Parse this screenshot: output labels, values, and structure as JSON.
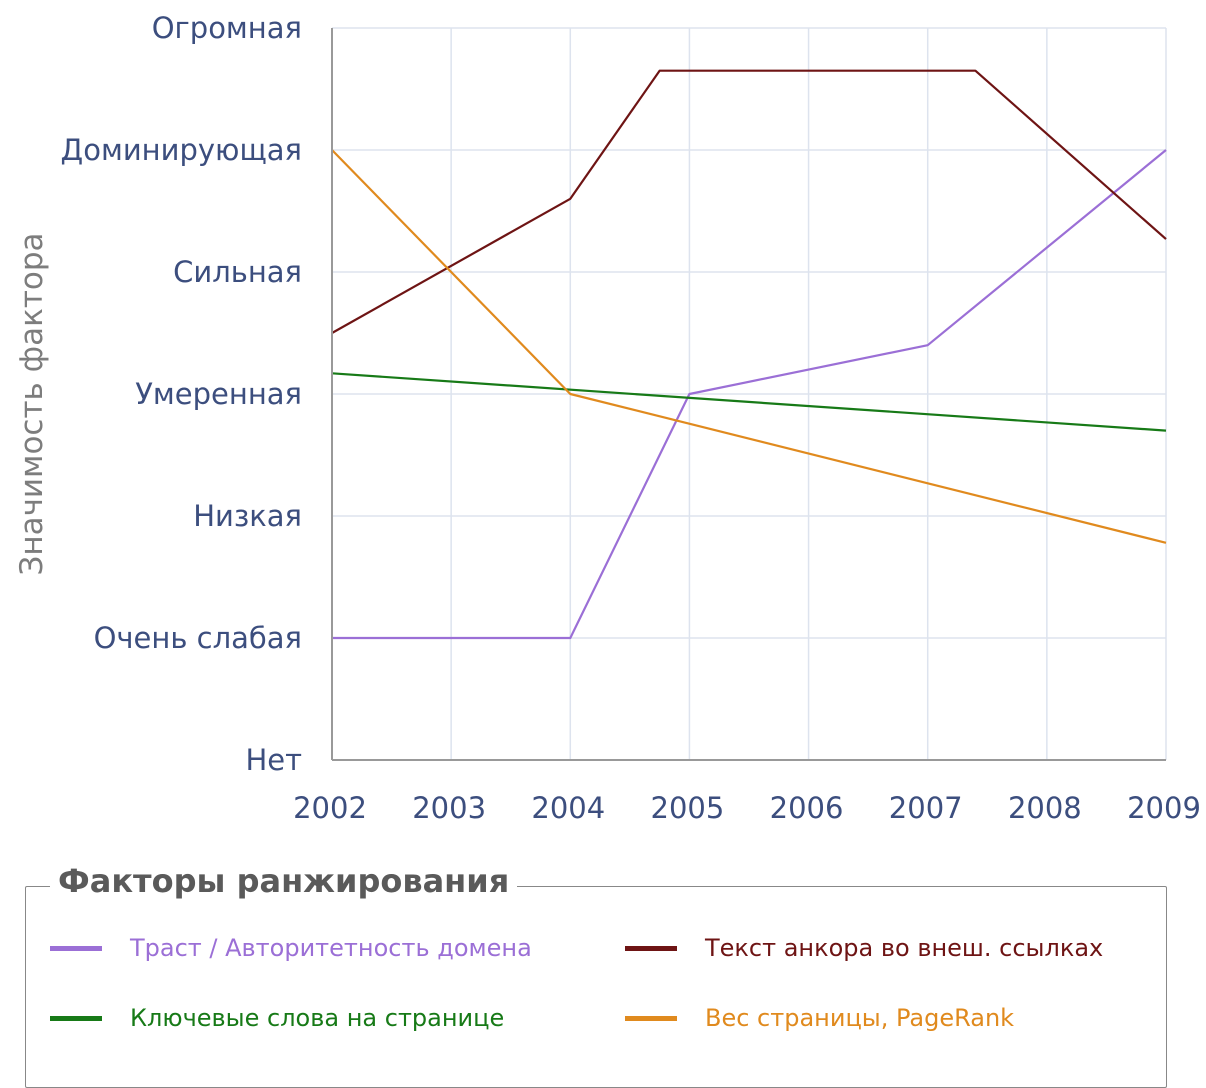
{
  "chart_data": {
    "type": "line",
    "ylabel": "Значимость фактора",
    "y_categories": [
      "Нет",
      "Очень слабая",
      "Низкая",
      "Умеренная",
      "Сильная",
      "Доминирующая",
      "Огромная"
    ],
    "x": [
      2002,
      2003,
      2004,
      2005,
      2006,
      2007,
      2008,
      2009
    ],
    "xlim": [
      2002,
      2009
    ],
    "ylim": [
      0,
      6
    ],
    "grid": true,
    "series": [
      {
        "name": "Траст / Авторитетность домена",
        "color": "#9b6fd6",
        "points": [
          [
            2002,
            1
          ],
          [
            2004,
            1
          ],
          [
            2005,
            3
          ],
          [
            2007,
            3.4
          ],
          [
            2009,
            5
          ]
        ]
      },
      {
        "name": "Текст анкора во внеш. ссылках",
        "color": "#6e1414",
        "points": [
          [
            2002,
            3.5
          ],
          [
            2004,
            4.6
          ],
          [
            2004.75,
            5.65
          ],
          [
            2007.4,
            5.65
          ],
          [
            2009,
            4.27
          ]
        ]
      },
      {
        "name": "Ключевые слова на странице",
        "color": "#177a17",
        "points": [
          [
            2002,
            3.17
          ],
          [
            2009,
            2.7
          ]
        ]
      },
      {
        "name": "Вес страницы, PageRank",
        "color": "#e08a1e",
        "points": [
          [
            2002,
            5
          ],
          [
            2004,
            3
          ],
          [
            2009,
            1.78
          ]
        ]
      }
    ]
  },
  "legend": {
    "title": "Факторы ранжирования",
    "items": [
      {
        "label": "Траст / Авторитетность домена",
        "color": "#9b6fd6"
      },
      {
        "label": "Текст анкора во внеш. ссылках",
        "color": "#6e1414"
      },
      {
        "label": "Ключевые слова на странице",
        "color": "#177a17"
      },
      {
        "label": "Вес страницы, PageRank",
        "color": "#e08a1e"
      }
    ]
  }
}
